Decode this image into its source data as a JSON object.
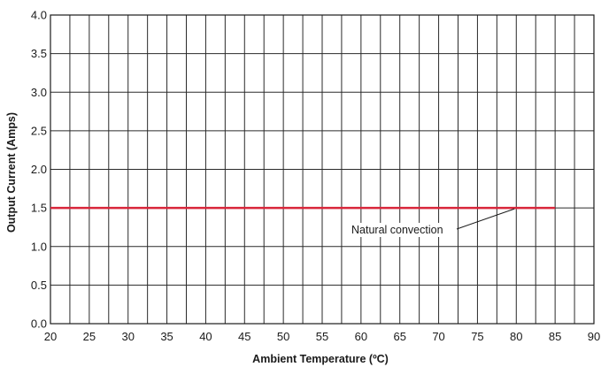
{
  "chart_data": {
    "type": "line",
    "title": "",
    "xlabel": "Ambient Temperature (ºC)",
    "ylabel": "Output Current (Amps)",
    "xlim": [
      20,
      90
    ],
    "ylim": [
      0,
      4
    ],
    "xticks": [
      20,
      25,
      30,
      35,
      40,
      45,
      50,
      55,
      60,
      65,
      70,
      75,
      80,
      85,
      90
    ],
    "yticks": [
      "0.0",
      "0.5",
      "1.0",
      "1.5",
      "2.0",
      "2.5",
      "3.0",
      "3.5",
      "4.0"
    ],
    "grid": true,
    "series": [
      {
        "name": "Natural convection",
        "color": "#d9263b",
        "x": [
          20,
          85
        ],
        "y": [
          1.5,
          1.5
        ]
      }
    ],
    "annotations": [
      {
        "text": "Natural convection",
        "points_to": {
          "x": 80,
          "y": 1.5
        }
      }
    ]
  }
}
